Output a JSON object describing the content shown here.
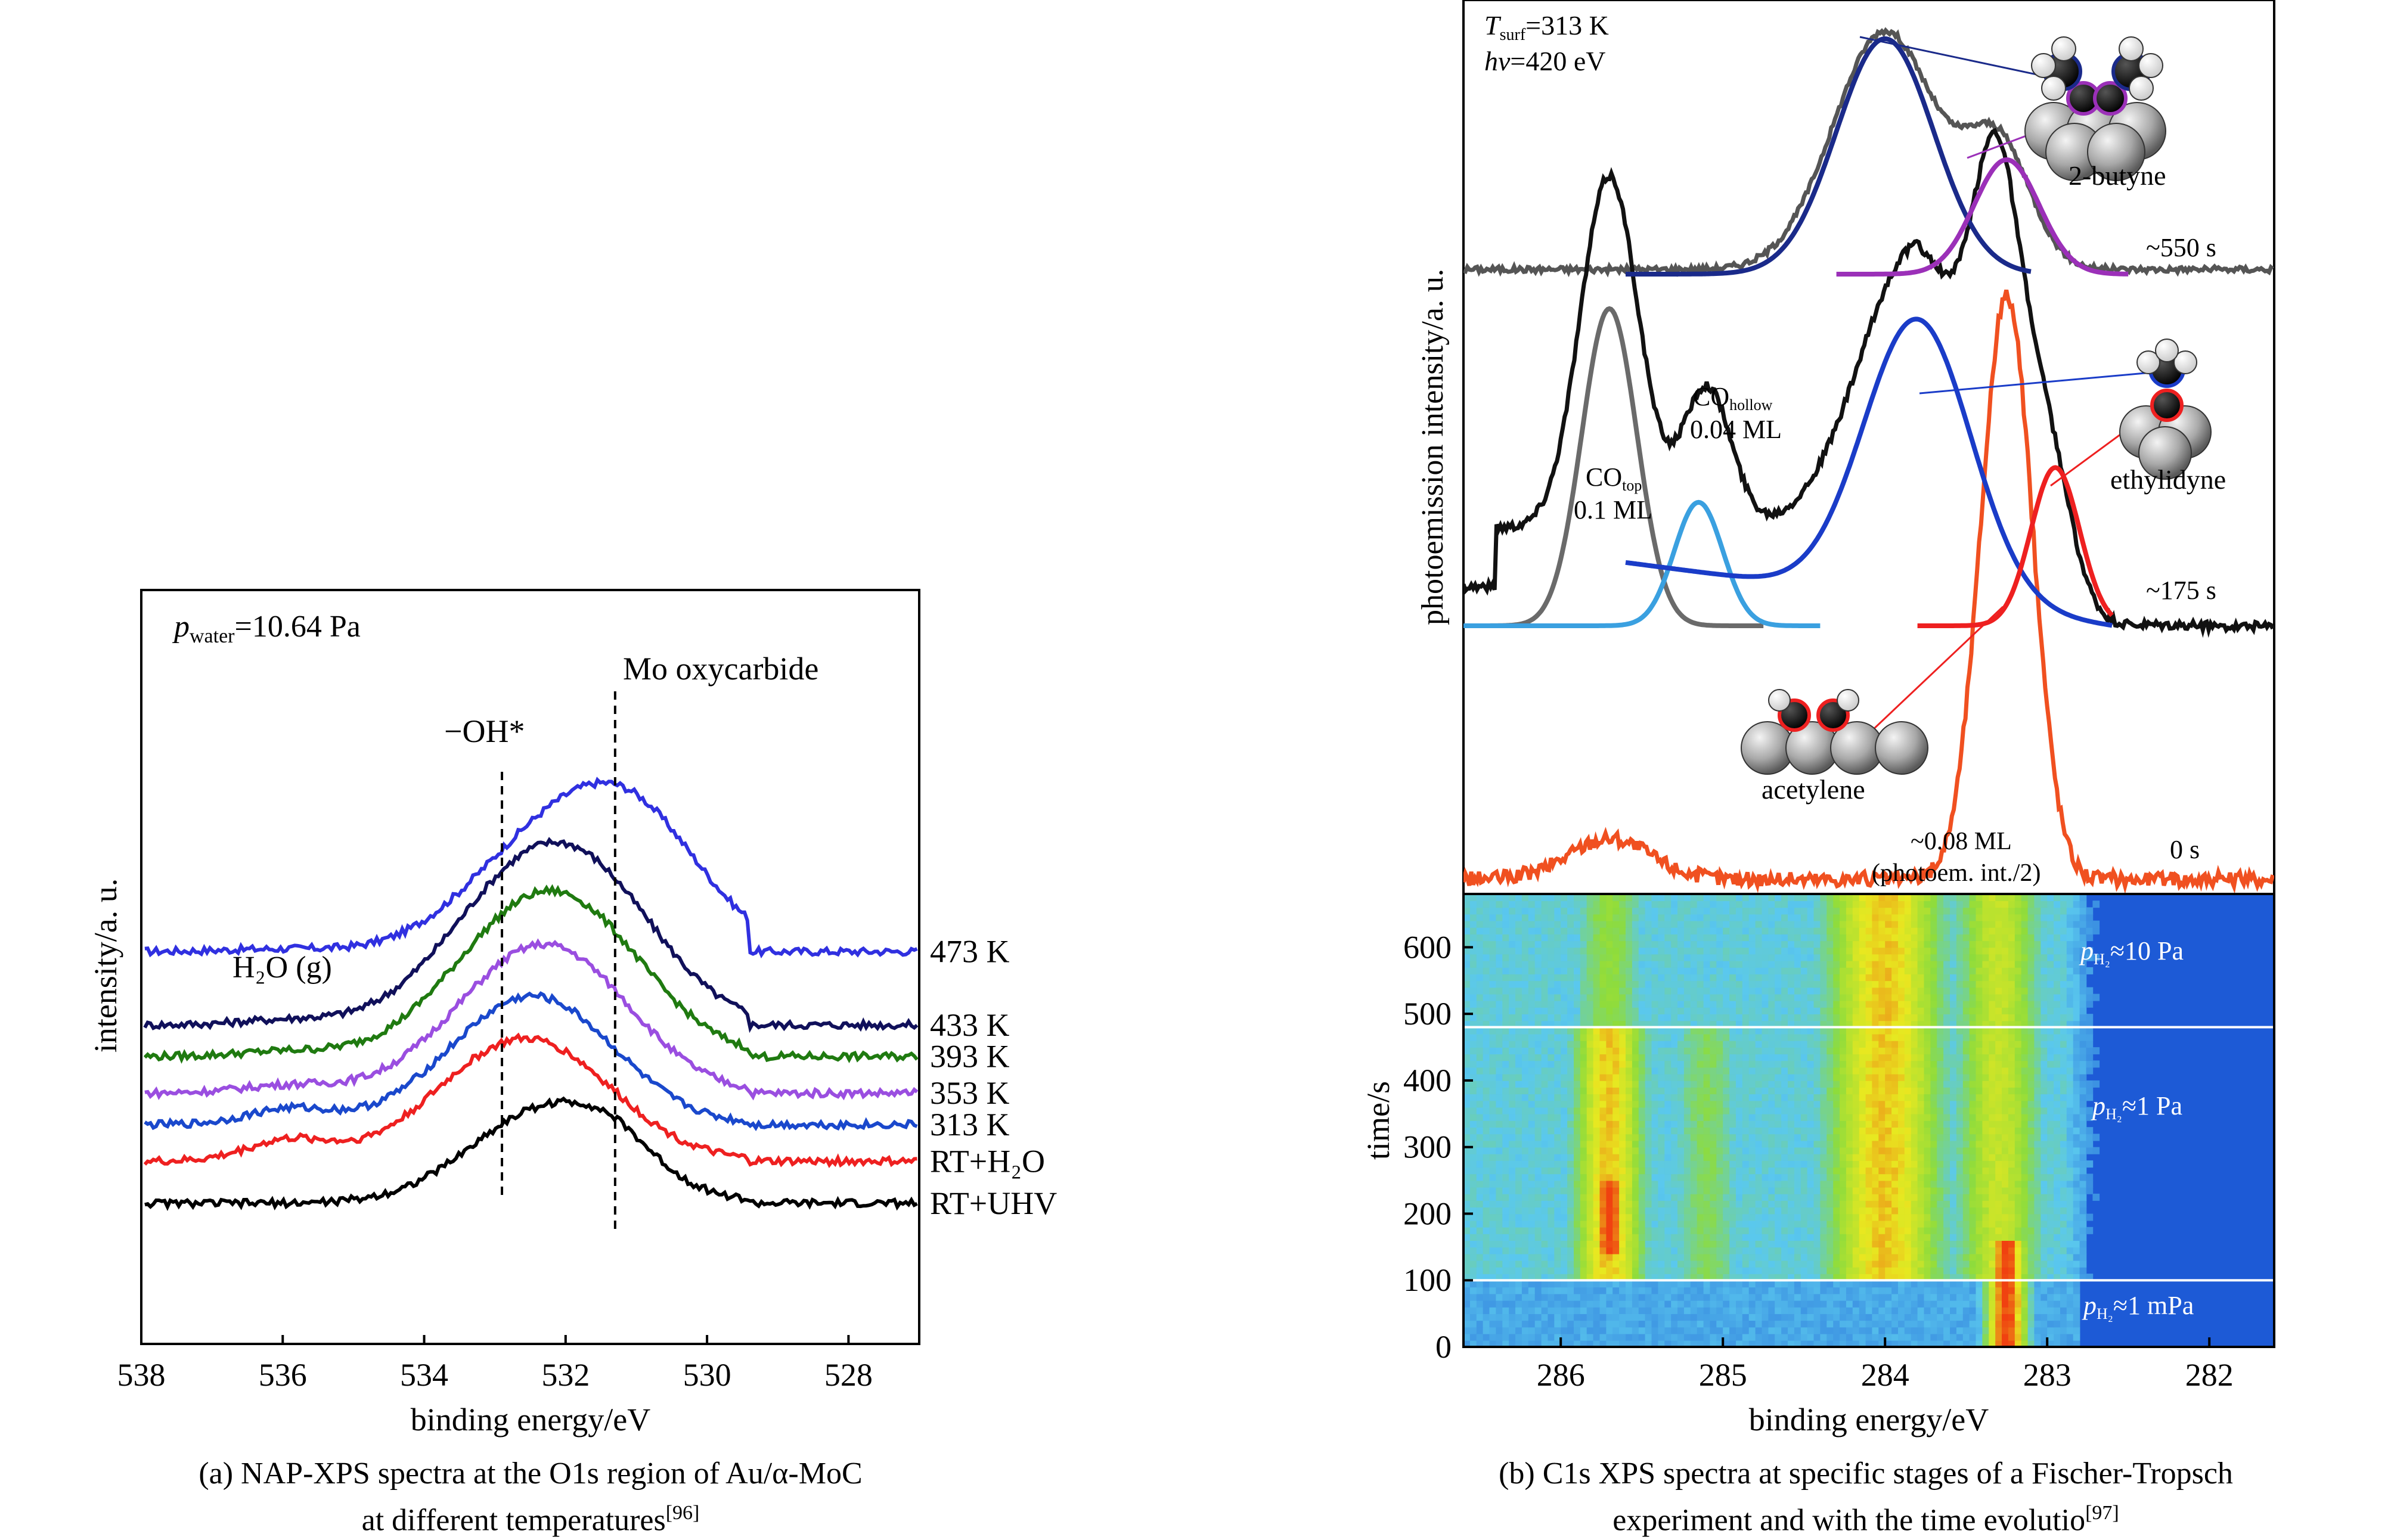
{
  "panel_a": {
    "caption_line1": "(a) NAP-XPS spectra at the O1s region of Au/α-MoC",
    "caption_line2": "at different temperatures",
    "caption_ref": "[96]",
    "pressure_p": "p",
    "pressure_sub": "water",
    "pressure_value": "=10.64 Pa",
    "annotation_oh": "−OH*",
    "annotation_mo": "Mo oxycarbide",
    "annotation_h2o": "H₂O (g)"
  },
  "panel_b": {
    "caption_line1": "(b) C1s XPS spectra at specific stages of a Fischer-Tropsch",
    "caption_line2": "experiment and with the time evolutio",
    "caption_ref": "[97]",
    "tsurf_T": "T",
    "tsurf_sub": "surf",
    "tsurf_value": "=313 K",
    "hv_symbol": "hν",
    "hv_value": "=420 eV",
    "label_butyne": "2-butyne",
    "label_ethylidyne": "ethylidyne",
    "label_acetylene": "acetylene",
    "label_t550": "~550 s",
    "label_t175": "~175 s",
    "label_t0": "0 s",
    "co_hollow": "CO",
    "co_hollow_sub": "hollow",
    "co_hollow_ml": "0.04 ML",
    "co_top": "CO",
    "co_top_sub": "top",
    "co_top_ml": "0.1 ML",
    "ml_008": "~0.08 ML",
    "photoem_note": "(photoem. int./2)",
    "band_p": "p",
    "band_h2": "H₂",
    "band_10pa": "≈10 Pa",
    "band_1pa": "≈1 Pa",
    "band_1mpa": "≈1 mPa"
  },
  "chart_data": [
    {
      "type": "line",
      "xlabel": "binding energy/eV",
      "ylabel": "intensity/a. u.",
      "xlim": [
        538,
        527
      ],
      "xticks": [
        538,
        536,
        534,
        532,
        530,
        528
      ],
      "reversed_x": true,
      "series": [
        {
          "name": "473 K",
          "color": "#3030e0",
          "baseline": 6.8,
          "peaks": [
            {
              "center": 531.1,
              "height": 2.6,
              "width": 1.0
            },
            {
              "center": 532.6,
              "height": 1.5,
              "width": 1.0
            },
            {
              "center": 536.0,
              "height": 0.05,
              "width": 0.8
            }
          ]
        },
        {
          "name": "433 K",
          "color": "#10105a",
          "baseline": 5.4,
          "peaks": [
            {
              "center": 531.7,
              "height": 2.6,
              "width": 1.05
            },
            {
              "center": 533.0,
              "height": 1.6,
              "width": 1.0
            },
            {
              "center": 535.9,
              "height": 0.1,
              "width": 0.7
            }
          ]
        },
        {
          "name": "393 K",
          "color": "#1f7a10",
          "baseline": 4.8,
          "peaks": [
            {
              "center": 531.8,
              "height": 2.3,
              "width": 1.05
            },
            {
              "center": 533.0,
              "height": 1.4,
              "width": 1.0
            },
            {
              "center": 535.9,
              "height": 0.1,
              "width": 0.7
            }
          ]
        },
        {
          "name": "353 K",
          "color": "#9a4ee0",
          "baseline": 4.1,
          "peaks": [
            {
              "center": 532.0,
              "height": 2.2,
              "width": 1.05
            },
            {
              "center": 533.1,
              "height": 1.0,
              "width": 1.0
            },
            {
              "center": 535.9,
              "height": 0.15,
              "width": 0.7
            }
          ]
        },
        {
          "name": "313 K",
          "color": "#1a48cc",
          "baseline": 3.5,
          "peaks": [
            {
              "center": 532.2,
              "height": 1.9,
              "width": 1.05
            },
            {
              "center": 533.2,
              "height": 0.8,
              "width": 1.0
            },
            {
              "center": 535.9,
              "height": 0.3,
              "width": 0.6
            }
          ]
        },
        {
          "name": "RT+H₂O",
          "color": "#ee2020",
          "baseline": 2.8,
          "peaks": [
            {
              "center": 532.3,
              "height": 1.9,
              "width": 1.1
            },
            {
              "center": 533.4,
              "height": 0.7,
              "width": 1.0
            },
            {
              "center": 535.9,
              "height": 0.4,
              "width": 0.6
            }
          ]
        },
        {
          "name": "RT+UHV",
          "color": "#000000",
          "baseline": 2.0,
          "peaks": [
            {
              "center": 532.2,
              "height": 1.85,
              "width": 1.1
            },
            {
              "center": 531.3,
              "height": 0.3,
              "width": 0.5
            }
          ]
        }
      ],
      "markers": [
        {
          "x": 532.9,
          "label": "−OH*"
        },
        {
          "x": 531.3,
          "label": "Mo oxycarbide"
        }
      ]
    },
    {
      "type": "line",
      "xlabel": "",
      "ylabel": "photoemission intensity/a. u.",
      "xlim": [
        286.6,
        281.6
      ],
      "reversed_x": true,
      "series": [
        {
          "name": "~550 s",
          "color": "#555555",
          "baseline": 0.0,
          "peaks": [
            {
              "center": 284.0,
              "height": 1.0,
              "width": 0.32
            },
            {
              "center": 283.3,
              "height": 0.5,
              "width": 0.2
            }
          ]
        },
        {
          "name": "~175 s",
          "color": "#111111",
          "baseline": 0.0,
          "peaks": [
            {
              "center": 285.7,
              "height": 1.0,
              "width": 0.18
            },
            {
              "center": 285.1,
              "height": 0.4,
              "width": 0.15
            },
            {
              "center": 283.8,
              "height": 0.8,
              "width": 0.35
            },
            {
              "center": 283.3,
              "height": 1.0,
              "width": 0.15
            },
            {
              "center": 283.0,
              "height": 0.45,
              "width": 0.15
            }
          ]
        },
        {
          "name": "0 s",
          "color": "#f05020",
          "baseline": 0.0,
          "peaks": [
            {
              "center": 283.25,
              "height": 1.0,
              "width": 0.16
            },
            {
              "center": 285.7,
              "height": 0.07,
              "width": 0.25
            }
          ]
        }
      ],
      "fits": [
        {
          "name": "2-butyne",
          "color": "#1a2a8a",
          "center": 284.0,
          "height": 1.0,
          "width": 0.3
        },
        {
          "name": "2-butyne-2",
          "color": "#9b30b8",
          "center": 283.25,
          "height": 0.48,
          "width": 0.2
        },
        {
          "name": "CO top",
          "color": "#6a6a6a",
          "center": 285.7,
          "height": 0.95,
          "width": 0.17
        },
        {
          "name": "CO hollow",
          "color": "#3aa0e0",
          "center": 285.15,
          "height": 0.37,
          "width": 0.15
        },
        {
          "name": "ethylidyne",
          "color": "#1a3cc8",
          "center": 283.8,
          "height": 0.8,
          "width": 0.33
        },
        {
          "name": "acetylene",
          "color": "#ee2020",
          "center": 282.95,
          "height": 0.45,
          "width": 0.15
        }
      ]
    },
    {
      "type": "heatmap",
      "xlabel": "binding energy/eV",
      "ylabel": "time/s",
      "xlim": [
        286.6,
        281.6
      ],
      "ylim": [
        0,
        680
      ],
      "xticks": [
        286,
        285,
        284,
        283,
        282
      ],
      "yticks": [
        0,
        100,
        200,
        300,
        400,
        500,
        600
      ],
      "colorscale": [
        "#1d5ad6",
        "#5ac8ee",
        "#8edc3c",
        "#e8e820",
        "#f04010"
      ],
      "bands": [
        {
          "name": "CO top",
          "center": 285.7,
          "width": 0.18,
          "t_start": 100,
          "t_end": 480,
          "intensity": 0.8
        },
        {
          "name": "CO top (low)",
          "center": 285.7,
          "width": 0.18,
          "t_start": 480,
          "t_end": 680,
          "intensity": 0.5
        },
        {
          "name": "hot spot",
          "center": 285.7,
          "width": 0.1,
          "t_start": 140,
          "t_end": 250,
          "intensity": 1.0
        },
        {
          "name": "CO hollow",
          "center": 285.1,
          "width": 0.18,
          "t_start": 100,
          "t_end": 480,
          "intensity": 0.45
        },
        {
          "name": "2-butyne/ethylidyne",
          "center": 284.0,
          "width": 0.3,
          "t_start": 100,
          "t_end": 680,
          "intensity": 0.8
        },
        {
          "name": "ethylidyne",
          "center": 283.3,
          "width": 0.22,
          "t_start": 100,
          "t_end": 680,
          "intensity": 0.65
        },
        {
          "name": "acetylene",
          "center": 283.25,
          "width": 0.1,
          "t_start": 0,
          "t_end": 160,
          "intensity": 1.0
        }
      ],
      "transitions": [
        100,
        480
      ]
    }
  ]
}
